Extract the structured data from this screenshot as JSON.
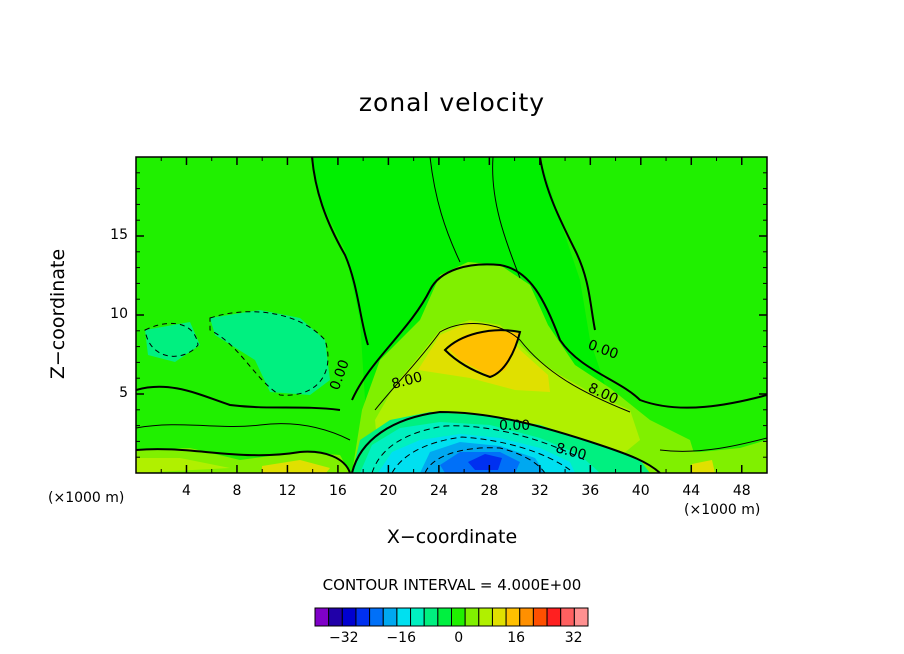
{
  "chart_data": {
    "type": "heatmap",
    "title": "zonal velocity",
    "xlabel": "X−coordinate",
    "ylabel": "Z−coordinate",
    "x_unit": "(×1000 m)",
    "xlim": [
      0,
      50
    ],
    "ylim": [
      0,
      20
    ],
    "x_ticks": [
      "4",
      "8",
      "12",
      "16",
      "20",
      "24",
      "28",
      "32",
      "36",
      "40",
      "44",
      "48"
    ],
    "y_ticks": [
      "5",
      "10",
      "15"
    ],
    "contour_interval_label": "CONTOUR INTERVAL = 4.000E+00",
    "contour_labels": [
      "0.00",
      "8.00",
      "0.00",
      "8.00",
      "0.00",
      "8.00",
      "0.00"
    ],
    "colorbar": {
      "levels": [
        -36,
        -32,
        -28,
        -24,
        -20,
        -16,
        -12,
        -8,
        -4,
        0,
        4,
        8,
        12,
        16,
        20,
        24,
        28,
        32,
        36
      ],
      "tick_labels": [
        "−32",
        "−16",
        "0",
        "16",
        "32"
      ],
      "tick_values": [
        -32,
        -16,
        0,
        16,
        32
      ],
      "colors": [
        "#7f00c8",
        "#2000a8",
        "#0000d0",
        "#0030f0",
        "#0070f8",
        "#00a8f0",
        "#00e0f0",
        "#00f0c0",
        "#00f080",
        "#00f040",
        "#20f000",
        "#80f000",
        "#b0f000",
        "#e0e000",
        "#ffc000",
        "#ff9000",
        "#ff5000",
        "#ff2020",
        "#ff6060",
        "#ff9090"
      ]
    },
    "regions": [
      {
        "value": 0,
        "desc": "background"
      },
      {
        "value": 4,
        "x_center": 28,
        "z_center": 8
      },
      {
        "value": 8,
        "x_center": 29,
        "z_center": 7.5
      },
      {
        "value": 16,
        "x_center": 27,
        "z_center": 8
      },
      {
        "value": -8,
        "x_center": 8,
        "z_center": 8
      },
      {
        "value": -32,
        "x_center": 27,
        "z_center": 1
      }
    ]
  }
}
